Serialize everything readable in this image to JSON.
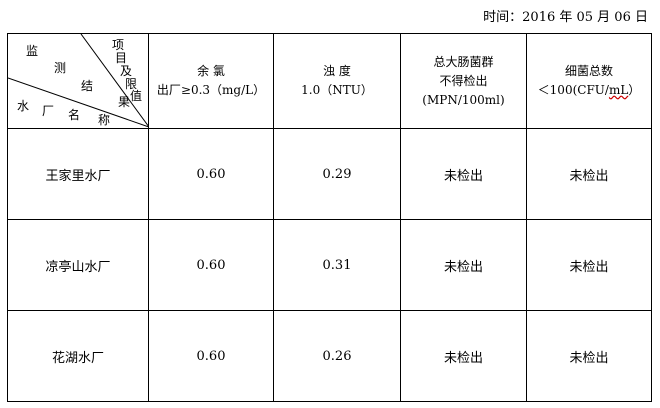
{
  "date": {
    "label": "时间：",
    "value": "2016 年 05 月 06 日"
  },
  "corner": {
    "top": [
      "监",
      "测",
      "结",
      "果"
    ],
    "right": [
      "项",
      "目",
      "及",
      "限",
      "值"
    ],
    "bottom": [
      "水",
      "厂",
      "名",
      "称"
    ]
  },
  "headers": [
    {
      "name": "余 氯",
      "limit": "出厂≥0.3（mg/L）"
    },
    {
      "name": "浊 度",
      "limit": "1.0（NTU）"
    },
    {
      "name": "总大肠菌群",
      "limit": "不得检出",
      "unit": "(MPN/100ml)"
    },
    {
      "name": "细菌总数",
      "limit_pre": "＜100(CFU/",
      "limit_sq": "mL",
      "limit_post": "）"
    }
  ],
  "rows": [
    {
      "plant": "王家里水厂",
      "chlorine": "0.60",
      "turbidity": "0.29",
      "coliform": "未检出",
      "bacteria": "未检出"
    },
    {
      "plant": "凉亭山水厂",
      "chlorine": "0.60",
      "turbidity": "0.31",
      "coliform": "未检出",
      "bacteria": "未检出"
    },
    {
      "plant": "花湖水厂",
      "chlorine": "0.60",
      "turbidity": "0.26",
      "coliform": "未检出",
      "bacteria": "未检出"
    }
  ]
}
